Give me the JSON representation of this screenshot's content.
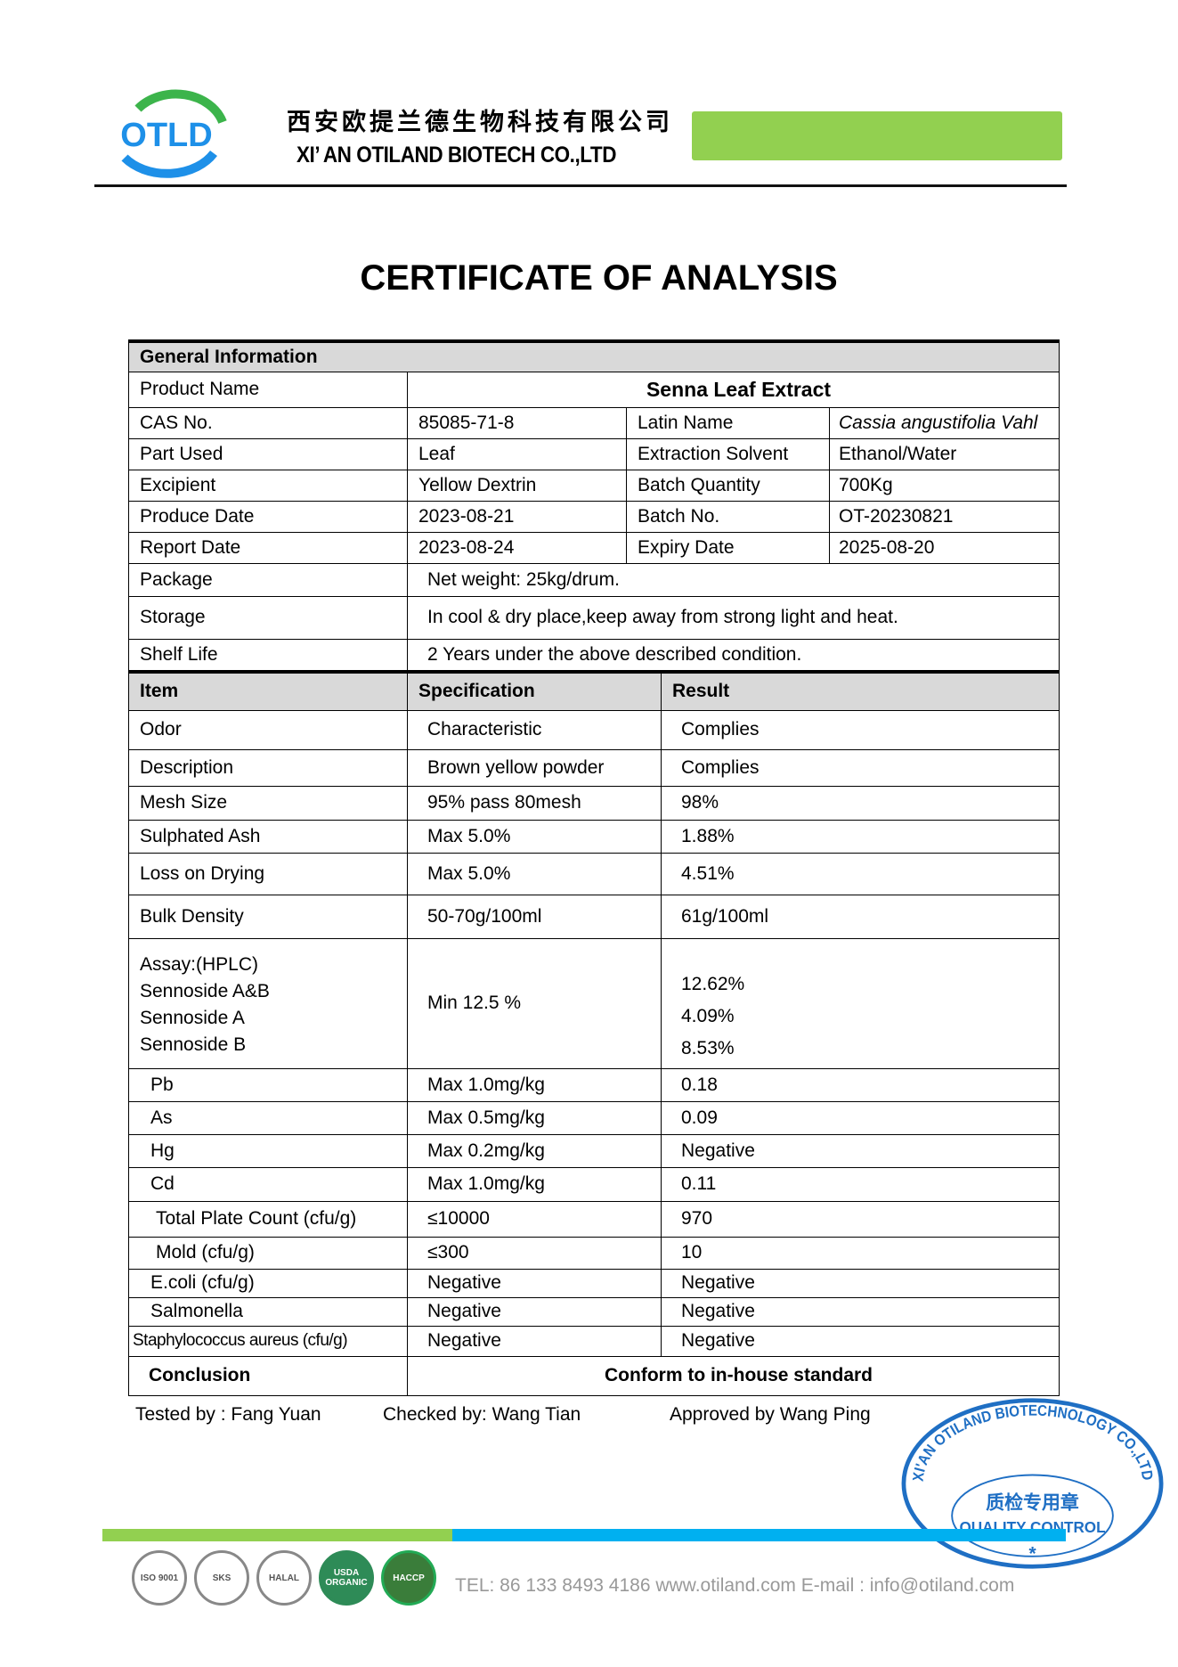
{
  "header": {
    "logo_text": "OTLD",
    "company_cn": "西安欧提兰德生物科技有限公司",
    "company_en": "XI’ AN OTILAND BIOTECH CO.,LTD",
    "colors": {
      "green": "#92d050",
      "blue": "#1e90e8"
    }
  },
  "title": "CERTIFICATE OF ANALYSIS",
  "general": {
    "section": "General Information",
    "product_name_label": "Product Name",
    "product_name": "Senna Leaf Extract",
    "rows": [
      {
        "l1": "CAS No.",
        "v1": "85085-71-8",
        "l2": "Latin Name",
        "v2": "Cassia angustifolia Vahl"
      },
      {
        "l1": "Part Used",
        "v1": "Leaf",
        "l2": "Extraction Solvent",
        "v2": "Ethanol/Water"
      },
      {
        "l1": "Excipient",
        "v1": "Yellow Dextrin",
        "l2": "Batch Quantity",
        "v2": "700Kg"
      },
      {
        "l1": "Produce Date",
        "v1": "2023-08-21",
        "l2": "Batch No.",
        "v2": "OT-20230821"
      },
      {
        "l1": "Report Date",
        "v1": "2023-08-24",
        "l2": "Expiry Date",
        "v2": "2025-08-20"
      }
    ],
    "wide": [
      {
        "l": "Package",
        "v": "Net weight: 25kg/drum."
      },
      {
        "l": "Storage",
        "v": "In cool & dry place,keep away from strong light and heat."
      },
      {
        "l": "Shelf Life",
        "v": "2 Years under the above described condition."
      }
    ]
  },
  "tests": {
    "headers": [
      "Item",
      "Specification",
      "Result"
    ],
    "rows": [
      {
        "item": "Odor",
        "spec": "Characteristic",
        "result": "Complies"
      },
      {
        "item": "Description",
        "spec": "Brown yellow powder",
        "result": "Complies"
      },
      {
        "item": "Mesh Size",
        "spec": "95% pass 80mesh",
        "result": "98%"
      },
      {
        "item": "Sulphated Ash",
        "spec": "Max 5.0%",
        "result": "1.88%"
      },
      {
        "item": "Loss on Drying",
        "spec": "Max 5.0%",
        "result": "4.51%"
      },
      {
        "item": "Bulk Density",
        "spec": "50-70g/100ml",
        "result": "61g/100ml"
      }
    ],
    "assay": {
      "items": [
        "Assay:(HPLC)",
        "Sennoside A&B",
        "Sennoside A",
        "Sennoside B"
      ],
      "spec": "Min  12.5 %",
      "results": [
        "12.62%",
        "4.09%",
        "8.53%"
      ]
    },
    "rows2": [
      {
        "item": "Pb",
        "spec": "Max 1.0mg/kg",
        "result": "0.18"
      },
      {
        "item": "As",
        "spec": "Max 0.5mg/kg",
        "result": "0.09"
      },
      {
        "item": "Hg",
        "spec": "Max 0.2mg/kg",
        "result": "Negative"
      },
      {
        "item": "Cd",
        "spec": "Max 1.0mg/kg",
        "result": "0.11"
      },
      {
        "item": "Total Plate Count (cfu/g)",
        "spec": "≤10000",
        "result": "970"
      },
      {
        "item": "Mold (cfu/g)",
        "spec": "≤300",
        "result": "10"
      },
      {
        "item": "E.coli (cfu/g)",
        "spec": "Negative",
        "result": "Negative"
      },
      {
        "item": "Salmonella",
        "spec": "Negative",
        "result": "Negative"
      },
      {
        "item": "Staphylococcus aureus (cfu/g)",
        "spec": "Negative",
        "result": "Negative"
      }
    ],
    "conclusion_label": "Conclusion",
    "conclusion": "Conform to in-house standard"
  },
  "signatures": {
    "tested": "Tested by : Fang Yuan",
    "checked": "Checked by: Wang Tian",
    "approved": "Approved by Wang Ping"
  },
  "stamp": {
    "ring": "XI'AN OTILAND BIOTECHNOLOGY CO.,LTD",
    "cn": "质检专用章",
    "center": "QUALITY CONTROL",
    "color": "#1f6fc4"
  },
  "footer": {
    "certs": [
      "ISO 9001",
      "SKS",
      "HALAL",
      "USDA ORGANIC",
      "HACCP"
    ],
    "contact": "TEL: 86 133 8493 4186   www.otiland.com  E-mail : info@otiland.com"
  }
}
